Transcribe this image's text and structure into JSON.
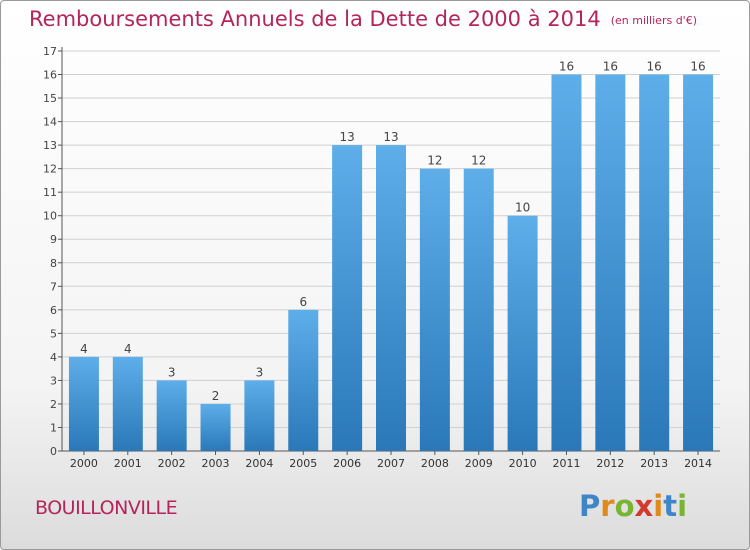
{
  "title": "Remboursements Annuels de la Dette de 2000 à 2014",
  "units": "(en milliers d'€)",
  "commune": "BOUILLONVILLE",
  "logo": {
    "text": "Proxiti",
    "letters": [
      {
        "char": "P",
        "color": "#3f86c9"
      },
      {
        "char": "r",
        "color": "#e08a1e"
      },
      {
        "char": "o",
        "color": "#79b532"
      },
      {
        "char": "x",
        "color": "#d23a2f"
      },
      {
        "char": "i",
        "color": "#e08a1e"
      },
      {
        "char": "t",
        "color": "#3f86c9"
      },
      {
        "char": "i",
        "color": "#79b532"
      }
    ]
  },
  "colors": {
    "accent": "#b5245a",
    "bar_light": "#5eaeea",
    "bar_dark": "#2a78b8",
    "grid": "#d0d0d0"
  },
  "chart_data": {
    "type": "bar",
    "title": "Remboursements Annuels de la Dette de 2000 à 2014",
    "subtitle": "(en milliers d'€)",
    "categories": [
      "2000",
      "2001",
      "2002",
      "2003",
      "2004",
      "2005",
      "2006",
      "2007",
      "2008",
      "2009",
      "2010",
      "2011",
      "2012",
      "2013",
      "2014"
    ],
    "values": [
      4,
      4,
      3,
      2,
      3,
      6,
      13,
      13,
      12,
      12,
      10,
      16,
      16,
      16,
      16
    ],
    "yticks": [
      0,
      1,
      2,
      3,
      4,
      5,
      6,
      7,
      8,
      9,
      10,
      11,
      12,
      13,
      14,
      15,
      16,
      17
    ],
    "ylim": [
      0,
      17
    ],
    "grid": true,
    "legend": "none",
    "data_labels": true
  }
}
